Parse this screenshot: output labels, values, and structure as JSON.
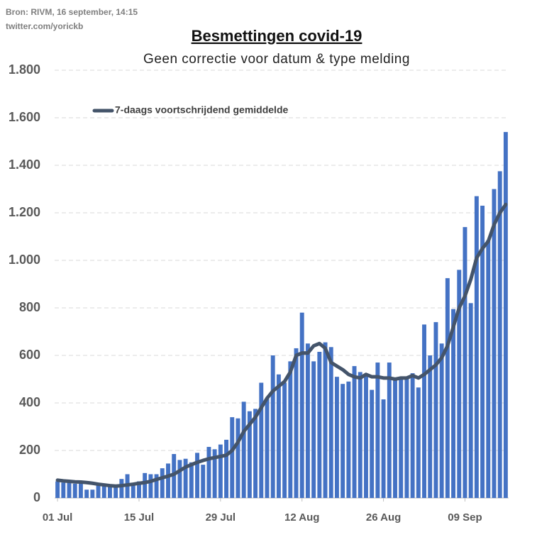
{
  "chart_data": {
    "type": "bar",
    "source": "Bron: RIVM, 16 september, 14:15",
    "credit": "twitter.com/yorickb",
    "title": "Besmettingen covid-19",
    "subtitle": "Geen correctie voor datum & type melding",
    "categories": [
      "01 Jul",
      null,
      null,
      null,
      null,
      null,
      null,
      null,
      null,
      null,
      null,
      null,
      null,
      null,
      "15 Jul",
      null,
      null,
      null,
      null,
      null,
      null,
      null,
      null,
      null,
      null,
      null,
      null,
      null,
      "29 Jul",
      null,
      null,
      null,
      null,
      null,
      null,
      null,
      null,
      null,
      null,
      null,
      null,
      null,
      "12 Aug",
      null,
      null,
      null,
      null,
      null,
      null,
      null,
      null,
      null,
      null,
      null,
      null,
      null,
      "26 Aug",
      null,
      null,
      null,
      null,
      null,
      null,
      null,
      null,
      null,
      null,
      null,
      null,
      null,
      "09 Sep",
      null,
      null,
      null,
      null,
      null,
      null,
      null
    ],
    "series": [
      {
        "type": "bar",
        "color": "#4472c4",
        "values": [
          70,
          65,
          65,
          60,
          65,
          35,
          35,
          55,
          50,
          50,
          55,
          80,
          100,
          60,
          70,
          105,
          100,
          100,
          125,
          145,
          185,
          160,
          165,
          150,
          190,
          140,
          215,
          205,
          225,
          245,
          340,
          335,
          405,
          365,
          375,
          485,
          420,
          600,
          520,
          485,
          575,
          630,
          780,
          650,
          575,
          615,
          655,
          635,
          510,
          480,
          490,
          555,
          530,
          520,
          455,
          570,
          415,
          570,
          500,
          505,
          505,
          525,
          465,
          730,
          600,
          740,
          650,
          925,
          795,
          960,
          1140,
          820,
          1270,
          1230,
          1085,
          1300,
          1375,
          1540
        ]
      },
      {
        "type": "line",
        "name": "7-daags voortschrijdend gemiddelde",
        "color": "#44546a",
        "values": [
          75,
          72,
          70,
          68,
          67,
          65,
          62,
          58,
          55,
          52,
          50,
          52,
          55,
          58,
          62,
          65,
          70,
          78,
          85,
          92,
          100,
          115,
          130,
          140,
          150,
          158,
          165,
          170,
          175,
          180,
          200,
          235,
          280,
          310,
          340,
          380,
          420,
          450,
          470,
          490,
          530,
          600,
          610,
          610,
          640,
          650,
          630,
          570,
          555,
          540,
          520,
          510,
          505,
          520,
          510,
          510,
          505,
          505,
          500,
          505,
          505,
          515,
          505,
          520,
          540,
          560,
          590,
          640,
          720,
          800,
          850,
          920,
          1010,
          1050,
          1080,
          1150,
          1200,
          1235
        ]
      }
    ],
    "ylim": [
      0,
      1800
    ],
    "yticks": [
      0,
      200,
      400,
      600,
      800,
      {
        "value": 1000,
        "label": "1.000"
      },
      {
        "value": 1200,
        "label": "1.200"
      },
      {
        "value": 1400,
        "label": "1.400"
      },
      {
        "value": 1600,
        "label": "1.600"
      },
      {
        "value": 1800,
        "label": "1.800"
      }
    ],
    "grid": true,
    "legend": "top-left"
  }
}
